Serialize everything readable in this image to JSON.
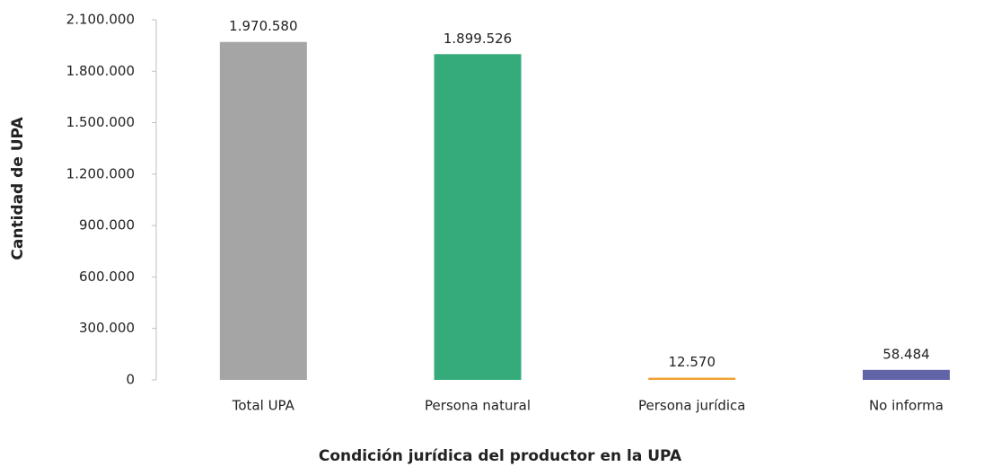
{
  "chart_data": {
    "type": "bar",
    "xlabel": "Condición jurídica del productor en la UPA",
    "ylabel": "Cantidad de UPA",
    "categories": [
      "Total UPA",
      "Persona natural",
      "Persona jurídica",
      "No informa"
    ],
    "values": [
      1970580,
      1899526,
      12570,
      58484
    ],
    "value_labels": [
      "1.970.580",
      "1.899.526",
      "12.570",
      "58.484"
    ],
    "colors": [
      "#a5a5a5",
      "#35aa7b",
      "#f0a030",
      "#6264a8"
    ],
    "ylim": [
      0,
      2100000
    ],
    "yticks": [
      0,
      {
        "value": 300000,
        "label": "300.000"
      },
      {
        "value": 600000,
        "label": "600.000"
      },
      {
        "value": 900000,
        "label": "900.000"
      },
      {
        "value": 1200000,
        "label": "1.200.000"
      },
      {
        "value": 1500000,
        "label": "1.500.000"
      },
      {
        "value": 1800000,
        "label": "1.800.000"
      },
      {
        "value": 2100000,
        "label": "2.100.000"
      }
    ],
    "grid": false
  }
}
